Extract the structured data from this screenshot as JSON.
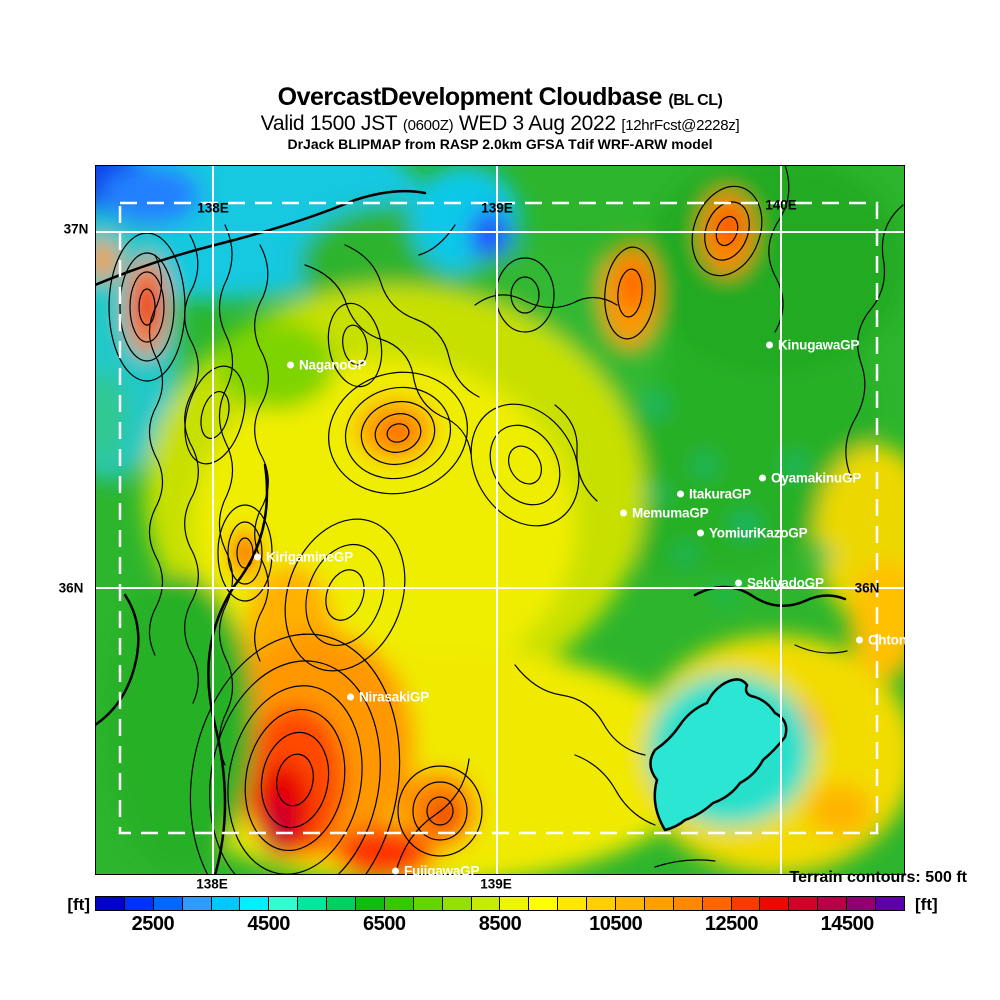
{
  "header": {
    "title": "OvercastDevelopment Cloudbase",
    "title_suffix": "(BL CL)",
    "valid_prefix": "Valid 1500 JST",
    "valid_zulu": "(0600Z)",
    "valid_date": "WED 3 Aug 2022",
    "valid_fcst": "[12hrFcst@2228z]",
    "model_line": "DrJack BLIPMAP from RASP 2.0km GFSA Tdif WRF-ARW model"
  },
  "map": {
    "grid_labels": {
      "top_lon": [
        "138E",
        "139E",
        "140E"
      ],
      "bottom_lon": [
        "138E",
        "139E"
      ],
      "lat_left_top": "37N",
      "lat_left_bottom": "36N",
      "lat_right": "36N"
    },
    "sites": [
      {
        "name": "NaganoGP"
      },
      {
        "name": "KinugawaGP"
      },
      {
        "name": "OyamakinuGP"
      },
      {
        "name": "ItakuraGP"
      },
      {
        "name": "MemumaGP"
      },
      {
        "name": "YomiuriKazoGP"
      },
      {
        "name": "SekiyadoGP"
      },
      {
        "name": "Ohtone"
      },
      {
        "name": "KirigamineGP"
      },
      {
        "name": "NirasakiGP"
      },
      {
        "name": "FujigawaGP"
      }
    ]
  },
  "footer": {
    "terrain_note": "Terrain contours: 500 ft",
    "unit_left": "[ft]",
    "unit_right": "[ft]"
  },
  "colorbar": {
    "ticks": [
      "2500",
      "4500",
      "6500",
      "8500",
      "10500",
      "12500",
      "14500"
    ],
    "tick_values_ft": [
      2500,
      4500,
      6500,
      8500,
      10500,
      12500,
      14500
    ],
    "range_ft": [
      1500,
      15500
    ],
    "step_ft": 500,
    "segment_colors": [
      "#0000d0",
      "#0030ff",
      "#0068ff",
      "#2e9cff",
      "#00c8ff",
      "#00f0ff",
      "#30ffd0",
      "#00e89e",
      "#00d060",
      "#10bc10",
      "#38c800",
      "#66d400",
      "#94e000",
      "#c4ec00",
      "#ecf600",
      "#ffff00",
      "#ffe800",
      "#ffd000",
      "#ffb800",
      "#ffa000",
      "#ff8800",
      "#ff6600",
      "#ff3800",
      "#f00800",
      "#d40028",
      "#b80048",
      "#900070",
      "#5c00a8"
    ]
  }
}
